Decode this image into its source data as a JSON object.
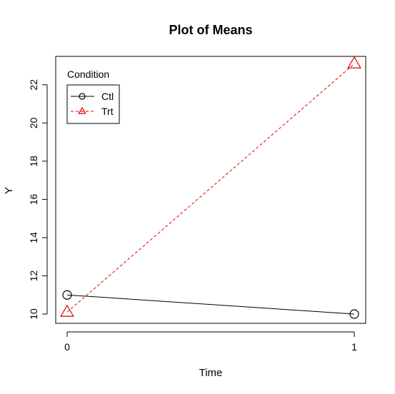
{
  "chart_data": {
    "type": "line",
    "title": "Plot of Means",
    "xlabel": "Time",
    "ylabel": "Y",
    "x": [
      0,
      1
    ],
    "x_ticks": [
      "0",
      "1"
    ],
    "xlim": [
      0,
      1
    ],
    "ylim": [
      10,
      23
    ],
    "y_ticks": [
      10,
      12,
      14,
      16,
      18,
      20,
      22
    ],
    "grid": false,
    "legend": {
      "title": "Condition",
      "placement": "top-left"
    },
    "series": [
      {
        "name": "Ctl",
        "values": [
          11,
          10
        ],
        "color": "#000000",
        "line_style": "solid",
        "marker": "circle"
      },
      {
        "name": "Trt",
        "values": [
          10.1,
          23.1
        ],
        "color": "#df0000",
        "line_style": "dashed",
        "marker": "triangle"
      }
    ]
  }
}
